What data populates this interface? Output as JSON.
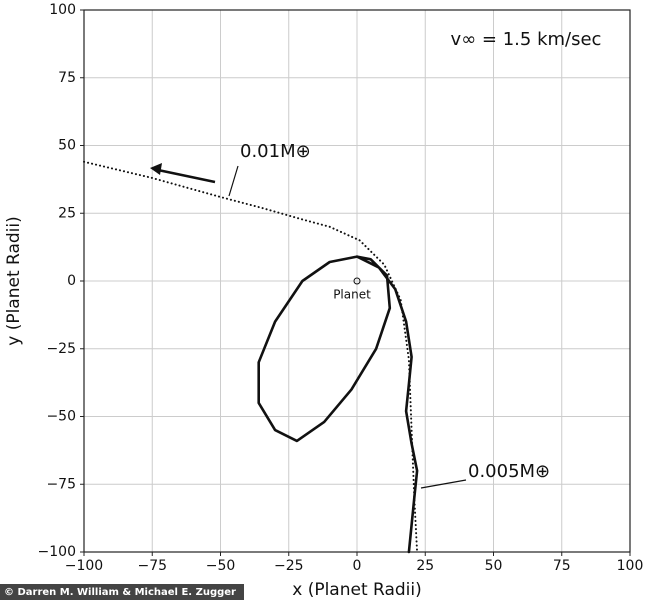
{
  "chart_data": {
    "type": "line",
    "xlabel": "x (Planet Radii)",
    "ylabel": "y (Planet Radii)",
    "xlim": [
      -100,
      100
    ],
    "ylim": [
      -100,
      100
    ],
    "xticks": [
      {
        "value": -100,
        "label": "−100"
      },
      {
        "value": -75,
        "label": "−75"
      },
      {
        "value": -50,
        "label": "−50"
      },
      {
        "value": -25,
        "label": "−25"
      },
      0,
      25,
      50,
      75,
      100
    ],
    "yticks": [
      {
        "value": -100,
        "label": "−100"
      },
      {
        "value": -75,
        "label": "−75"
      },
      {
        "value": -50,
        "label": "−50"
      },
      {
        "value": -25,
        "label": "−25"
      },
      0,
      25,
      50,
      75,
      100
    ],
    "grid": true,
    "series": [
      {
        "name": "0.01M⊕",
        "color": "#111111",
        "style": "dotted",
        "x": [
          -100,
          -75,
          -50,
          -35,
          -21,
          -10,
          1,
          10,
          16,
          19,
          20,
          21,
          22
        ],
        "values": [
          44,
          38,
          31,
          27,
          23,
          20,
          15,
          6,
          -7,
          -29,
          -55,
          -80,
          -100
        ]
      },
      {
        "name": "0.005M⊕",
        "color": "#111111",
        "style": "solid",
        "x": [
          19,
          21,
          22,
          20,
          18,
          19,
          20,
          18,
          14,
          8,
          0,
          -10,
          -20,
          -30,
          -36,
          -36,
          -30,
          -22,
          -12,
          -2,
          7,
          12,
          11,
          5,
          0
        ],
        "values": [
          -100,
          -80,
          -70,
          -60,
          -48,
          -38,
          -28,
          -15,
          -3,
          5,
          9,
          7,
          0,
          -15,
          -30,
          -45,
          -55,
          -59,
          -52,
          -40,
          -25,
          -10,
          2,
          8,
          9
        ]
      }
    ],
    "annotations": {
      "velocity": "v∞ = 1.5 km/sec",
      "planet": "Planet"
    },
    "credit": "© Darren M. William & Michael E. Zugger"
  }
}
